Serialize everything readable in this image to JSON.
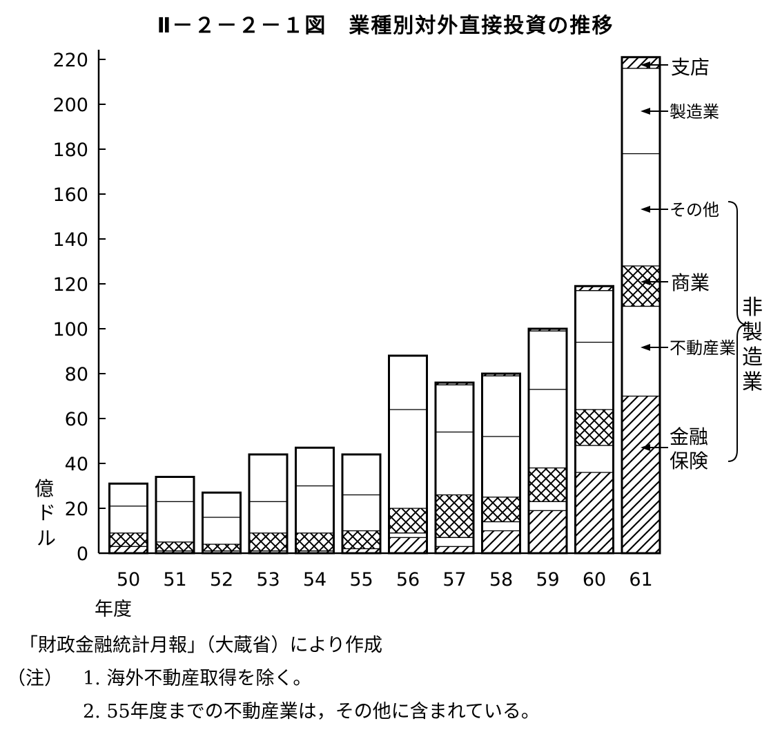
{
  "chart_data": {
    "type": "bar",
    "title": "Ⅱ－２－２－１図　業種別対外直接投資の推移",
    "ylabel": [
      "億",
      "ド",
      "ル"
    ],
    "xlabel": "年度",
    "categories": [
      "50",
      "51",
      "52",
      "53",
      "54",
      "55",
      "56",
      "57",
      "58",
      "59",
      "60",
      "61"
    ],
    "ylim": [
      0,
      225
    ],
    "yticks": [
      0,
      20,
      40,
      60,
      80,
      100,
      120,
      140,
      160,
      180,
      200,
      220
    ],
    "stacked": true,
    "series": [
      {
        "name": "金融保険",
        "pattern": "diagonal",
        "values": [
          3,
          1,
          1,
          1,
          1,
          2,
          7,
          3,
          10,
          19,
          36,
          70
        ]
      },
      {
        "name": "不動産業",
        "pattern": "blank",
        "values": [
          0,
          0,
          0,
          0,
          0,
          0,
          2,
          4,
          4,
          4,
          12,
          40
        ]
      },
      {
        "name": "商業",
        "pattern": "crosshatch",
        "values": [
          6,
          4,
          3,
          8,
          8,
          8,
          11,
          19,
          11,
          15,
          16,
          18
        ]
      },
      {
        "name": "その他",
        "pattern": "blank",
        "values": [
          12,
          18,
          12,
          14,
          21,
          16,
          44,
          28,
          27,
          35,
          30,
          50
        ]
      },
      {
        "name": "製造業",
        "pattern": "blank",
        "values": [
          10,
          11,
          11,
          21,
          17,
          18,
          24,
          21,
          27,
          26,
          23,
          38
        ]
      },
      {
        "name": "支店",
        "pattern": "diagonal",
        "values": [
          0,
          0,
          0,
          0,
          0,
          0,
          0,
          1,
          1,
          1,
          2,
          5
        ]
      }
    ],
    "legend": {
      "items": [
        {
          "label": "支店",
          "series": "支店"
        },
        {
          "label": "製造業",
          "series": "製造業"
        },
        {
          "label": "その他",
          "series": "その他"
        },
        {
          "label": "商業",
          "series": "商業"
        },
        {
          "label": "不動産業",
          "series": "不動産業"
        },
        {
          "label": "金融保険",
          "lines": [
            "金融",
            "保険"
          ],
          "series": "金融保険"
        }
      ],
      "group_label": [
        "非",
        "製",
        "造",
        "業"
      ],
      "placement": "right"
    }
  },
  "notes": {
    "source": "「財政金融統計月報」（大蔵省）により作成",
    "note_prefix": "（注）",
    "note1": "1.  海外不動産取得を除く。",
    "note2": "2.  55年度までの不動産業は，その他に含まれている。"
  }
}
